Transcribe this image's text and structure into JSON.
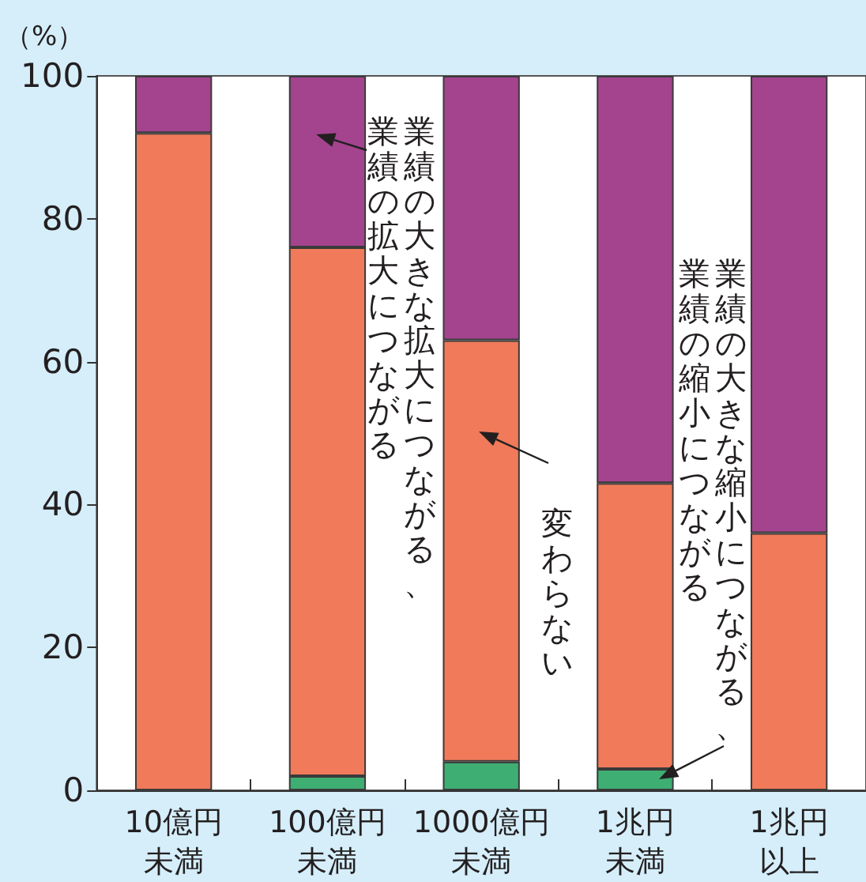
{
  "chart_data": {
    "type": "bar",
    "stacked": true,
    "ylabel": "（%）",
    "categories": [
      "10億円未満",
      "100億円未満",
      "1000億円未満",
      "1兆円未満",
      "1兆円以上"
    ],
    "series": [
      {
        "name": "業績の大きな縮小につながる、業績の縮小につながる",
        "color": "#3fae72",
        "values": [
          0,
          2,
          4,
          3,
          0
        ]
      },
      {
        "name": "変わらない",
        "color": "#f07a5a",
        "values": [
          92,
          74,
          59,
          40,
          36
        ]
      },
      {
        "name": "業績の大きな拡大につながる、業績の拡大につながる",
        "color": "#a4448e",
        "values": [
          8,
          24,
          37,
          57,
          64
        ]
      }
    ],
    "ylim": [
      0,
      100
    ],
    "yticks": [
      0,
      20,
      40,
      60,
      80,
      100
    ]
  }
}
